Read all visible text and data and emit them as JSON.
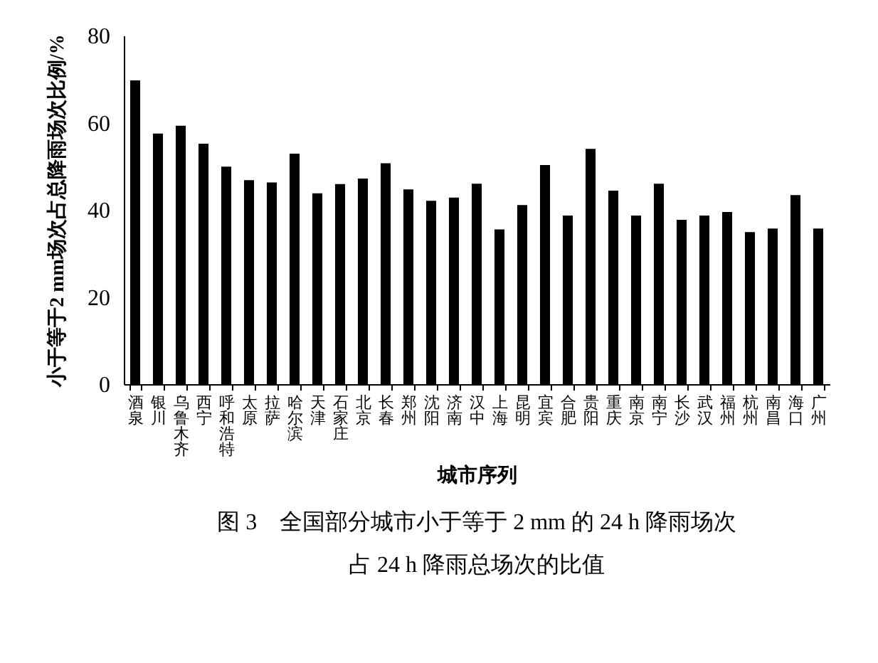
{
  "chart_data": {
    "type": "bar",
    "xlabel": "城市序列",
    "ylabel": "小于等于2 mm场次占总降雨场次比例/%",
    "categories": [
      "酒泉",
      "银川",
      "乌鲁木齐",
      "西宁",
      "呼和浩特",
      "太原",
      "拉萨",
      "哈尔滨",
      "天津",
      "石家庄",
      "北京",
      "长春",
      "郑州",
      "沈阳",
      "济南",
      "汉中",
      "上海",
      "昆明",
      "宜宾",
      "合肥",
      "贵阳",
      "重庆",
      "南京",
      "南宁",
      "长沙",
      "武汉",
      "福州",
      "杭州",
      "南昌",
      "海口",
      "广州"
    ],
    "values": [
      69.7,
      57.5,
      59.3,
      55.2,
      49.9,
      46.8,
      46.3,
      52.9,
      43.8,
      45.9,
      47.2,
      50.7,
      44.7,
      42.1,
      42.8,
      46.0,
      35.5,
      41.1,
      50.3,
      38.7,
      54.0,
      44.4,
      38.7,
      46.0,
      37.7,
      38.7,
      39.5,
      34.9,
      35.7,
      43.4,
      35.7
    ],
    "color": "#000000",
    "ylim": [
      0,
      80
    ],
    "yticks": [
      0,
      20,
      40,
      60,
      80
    ],
    "annotations": [
      "图 3　全国部分城市小于等于 2 mm 的 24 h 降雨场次",
      "占 24 h 降雨总场次的比值"
    ]
  }
}
